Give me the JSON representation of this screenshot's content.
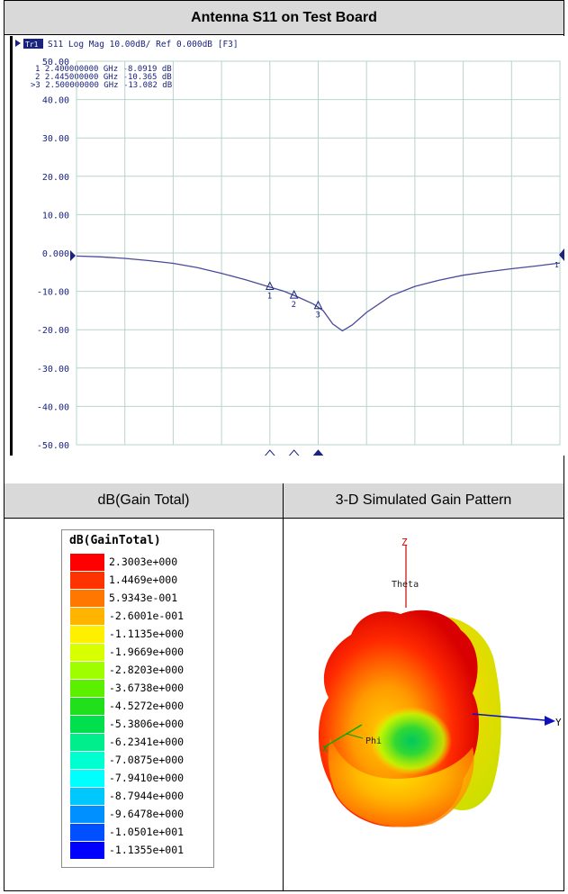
{
  "title": "Antenna S11 on Test Board",
  "analyzer": {
    "header": "S11 Log Mag 10.00dB/ Ref 0.000dB [F3]",
    "channel_badge": "Tr1",
    "markers": [
      {
        "id": "1",
        "freq": "2.400000000 GHz",
        "value": "-8.0919 dB",
        "active": false
      },
      {
        "id": "2",
        "freq": "2.445000000 GHz",
        "value": "-10.365 dB",
        "active": false
      },
      {
        "id": ">3",
        "freq": "2.500000000 GHz",
        "value": "-13.082 dB",
        "active": true
      }
    ],
    "right_marker_label": "1"
  },
  "chart_data": {
    "type": "line",
    "title": "S11 Log Mag",
    "ylabel": "",
    "ylim": [
      -50,
      50
    ],
    "y_ticks": [
      "50.00",
      "40.00",
      "30.00",
      "20.00",
      "10.00",
      "0.000",
      "-10.00",
      "-20.00",
      "-30.00",
      "-40.00",
      "-50.00"
    ],
    "x_divisions": 10,
    "grid": true,
    "series": [
      {
        "x": [
          0,
          0.5,
          1,
          1.5,
          2,
          2.5,
          3,
          3.5,
          4,
          4.3,
          4.6,
          4.9,
          5.1,
          5.3,
          5.5,
          5.7,
          6,
          6.5,
          7,
          7.5,
          8,
          8.5,
          9,
          9.5,
          10
        ],
        "values": [
          -0.8,
          -1.0,
          -1.4,
          -2.0,
          -2.7,
          -3.8,
          -5.3,
          -7.0,
          -8.9,
          -10.0,
          -11.6,
          -13.3,
          -15.0,
          -18.5,
          -20.3,
          -18.8,
          -15.5,
          -11.2,
          -8.7,
          -7.1,
          -5.8,
          -4.9,
          -4.1,
          -3.4,
          -2.6
        ]
      }
    ],
    "marker_points": [
      {
        "label": "1",
        "x": 4.0,
        "y": -8.09
      },
      {
        "label": "2",
        "x": 4.5,
        "y": -10.37
      },
      {
        "label": "3",
        "x": 5.0,
        "y": -13.08
      }
    ]
  },
  "columns": {
    "left_header": "dB(Gain Total)",
    "right_header": "3-D Simulated Gain Pattern"
  },
  "legend": {
    "title": "dB(GainTotal)",
    "values": [
      "2.3003e+000",
      "1.4469e+000",
      "5.9343e-001",
      "-2.6001e-001",
      "-1.1135e+000",
      "-1.9669e+000",
      "-2.8203e+000",
      "-3.6738e+000",
      "-4.5272e+000",
      "-5.3806e+000",
      "-6.2341e+000",
      "-7.0875e+000",
      "-7.9410e+000",
      "-8.7944e+000",
      "-9.6478e+000",
      "-1.0501e+001",
      "-1.1355e+001"
    ],
    "colors": [
      "#ff0000",
      "#ff3300",
      "#ff7700",
      "#ffb400",
      "#fff000",
      "#d8ff00",
      "#9fff00",
      "#5cf000",
      "#1fe01a",
      "#00e04c",
      "#00ee8c",
      "#00ffd0",
      "#00ffff",
      "#00c8ff",
      "#0090ff",
      "#0050ff",
      "#0000ff"
    ]
  },
  "axes3d": {
    "z": "Z",
    "y": "Y",
    "x": "X",
    "theta": "Theta",
    "phi": "Phi"
  }
}
